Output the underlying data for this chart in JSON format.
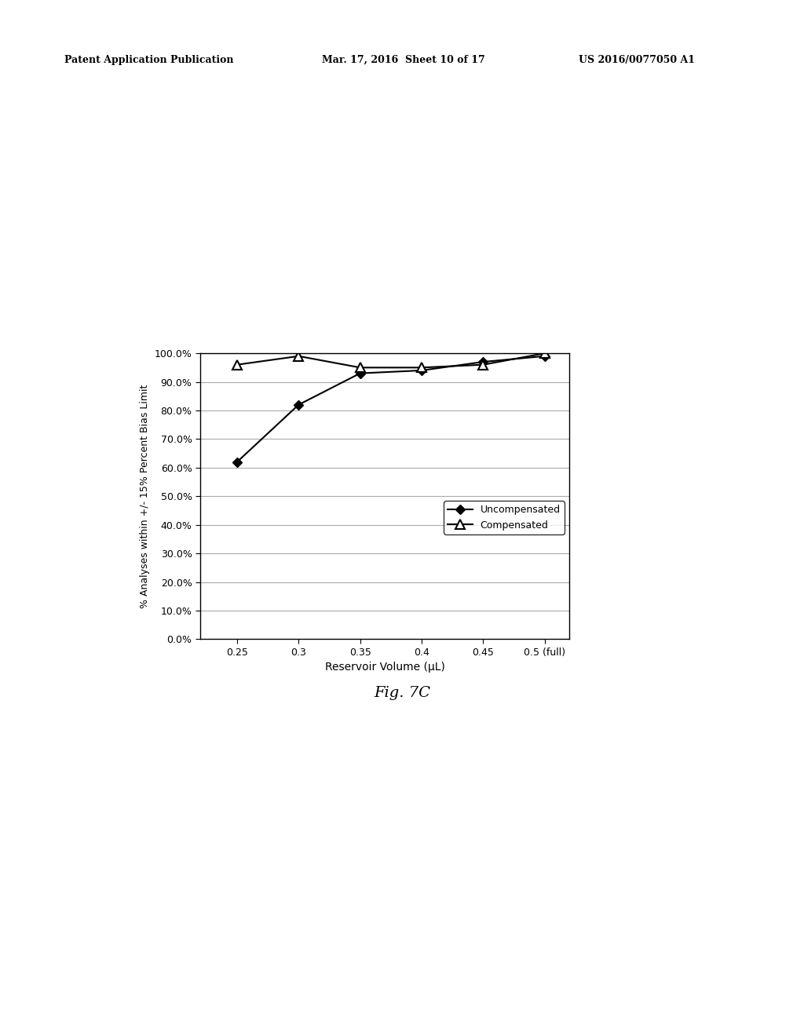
{
  "x_values": [
    0.25,
    0.3,
    0.35,
    0.4,
    0.45,
    0.5
  ],
  "x_labels": [
    "0.25",
    "0.3",
    "0.35",
    "0.4",
    "0.45",
    "0.5 (full)"
  ],
  "uncompensated": [
    0.62,
    0.82,
    0.93,
    0.94,
    0.97,
    0.99
  ],
  "compensated": [
    0.96,
    0.99,
    0.95,
    0.95,
    0.96,
    1.0
  ],
  "xlabel": "Reservoir Volume (μL)",
  "ylabel": "% Analyses within +/- 15% Percent Bias Limit",
  "legend_uncompensated": "Uncompensated",
  "legend_compensated": "Compensated",
  "fig_label": "Fig. 7C",
  "header_left": "Patent Application Publication",
  "header_center": "Mar. 17, 2016  Sheet 10 of 17",
  "header_right": "US 2016/0077050 A1",
  "ylim": [
    0.0,
    1.0
  ],
  "yticks": [
    0.0,
    0.1,
    0.2,
    0.3,
    0.4,
    0.5,
    0.6,
    0.7,
    0.8,
    0.9,
    1.0
  ],
  "background_color": "#ffffff",
  "line_color": "#000000",
  "grid_color": "#aaaaaa"
}
